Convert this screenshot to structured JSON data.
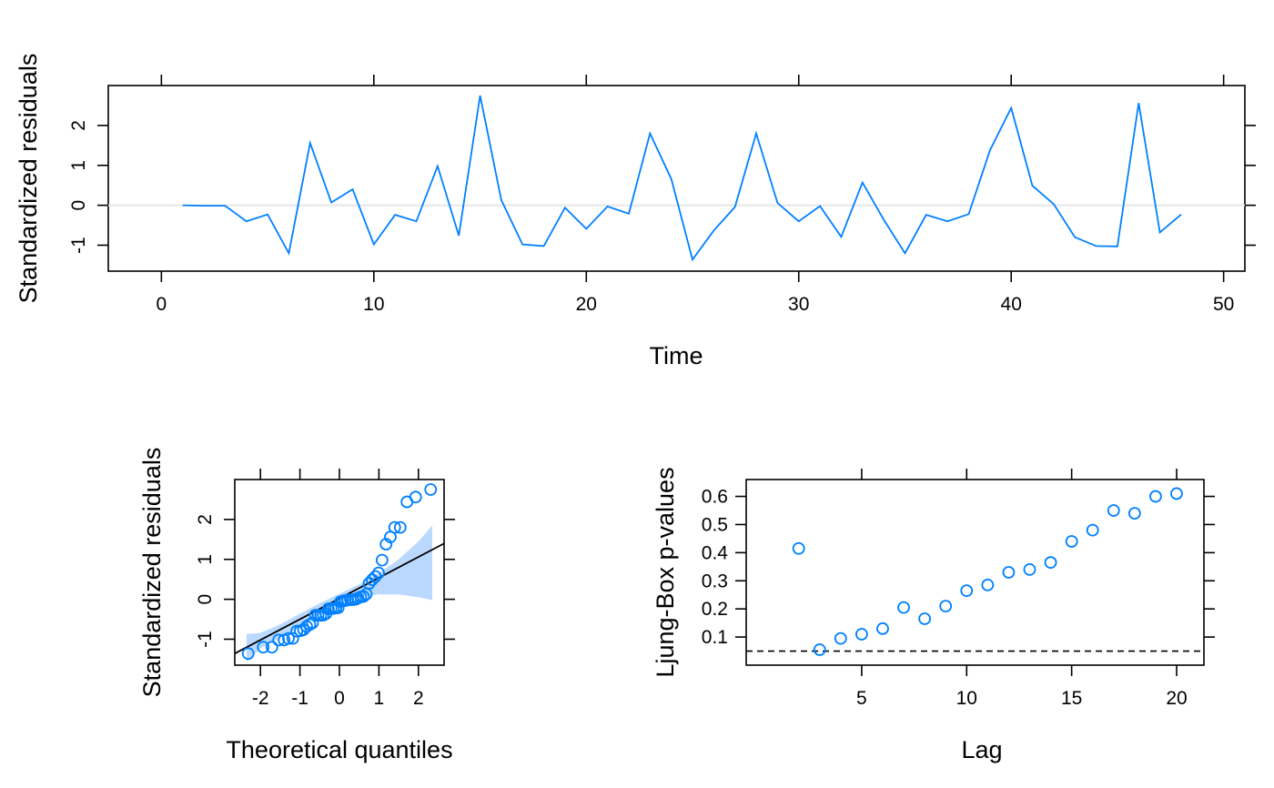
{
  "chart_data": [
    {
      "type": "line",
      "xlabel": "Time",
      "ylabel": "Standardized residuals",
      "xlim": [
        -2.5,
        51
      ],
      "ylim": [
        -1.65,
        3.0
      ],
      "x_ticks": [
        "0",
        "10",
        "20",
        "30",
        "40",
        "50"
      ],
      "y_ticks": [
        "-1",
        "0",
        "1",
        "2"
      ],
      "reference_line": 0,
      "grid": false,
      "color": "#0080FF",
      "reference_color": "#E6E6E6",
      "series": [
        {
          "x": [
            1,
            2,
            3,
            4,
            5,
            6,
            7,
            8,
            9,
            10,
            11,
            12,
            13,
            14,
            15,
            16,
            17,
            18,
            19,
            20,
            21,
            22,
            23,
            24,
            25,
            26,
            27,
            28,
            29,
            30,
            31,
            32,
            33,
            34,
            35,
            36,
            37,
            38,
            39,
            40,
            41,
            42,
            43,
            44,
            45,
            46,
            47,
            48
          ],
          "values": [
            0.0,
            -0.01,
            -0.01,
            -0.4,
            -0.23,
            -1.2,
            1.56,
            0.07,
            0.4,
            -0.98,
            -0.24,
            -0.4,
            0.98,
            -0.76,
            2.75,
            0.13,
            -0.98,
            -1.02,
            -0.06,
            -0.59,
            -0.03,
            -0.21,
            1.8,
            0.66,
            -1.36,
            -0.63,
            -0.04,
            1.8,
            0.06,
            -0.4,
            -0.02,
            -0.79,
            0.57,
            -0.36,
            -1.2,
            -0.24,
            -0.4,
            -0.22,
            1.38,
            2.44,
            0.49,
            0.03,
            -0.8,
            -1.02,
            -1.03,
            2.56,
            -0.68,
            -0.23
          ]
        }
      ]
    },
    {
      "type": "scatter",
      "xlabel": "Theoretical quantiles",
      "ylabel": "Standardized residuals",
      "xlim": [
        -2.65,
        2.65
      ],
      "ylim": [
        -1.65,
        3.0
      ],
      "x_ticks": [
        "-2",
        "-1",
        "0",
        "1",
        "2"
      ],
      "y_ticks": [
        "-1",
        "0",
        "1",
        "2"
      ],
      "grid": false,
      "point_color": "#0080FF",
      "band_color": "#BBD9FF",
      "line_color": "#000000",
      "reference_line": {
        "intercept": 0.02,
        "slope": 0.52
      },
      "confidence_band": {
        "x": [
          -2.35,
          -2.0,
          -1.5,
          -1.0,
          -0.5,
          0.0,
          0.5,
          1.0,
          1.5,
          2.0,
          2.35
        ],
        "lower": [
          -1.57,
          -1.23,
          -0.97,
          -0.7,
          -0.37,
          -0.1,
          0.06,
          0.12,
          0.12,
          0.05,
          -0.02
        ],
        "upper": [
          -0.87,
          -0.84,
          -0.63,
          -0.36,
          -0.1,
          0.14,
          0.37,
          0.66,
          1.0,
          1.45,
          1.85
        ]
      },
      "series": [
        {
          "x": [
            -2.31,
            -1.93,
            -1.71,
            -1.54,
            -1.4,
            -1.29,
            -1.18,
            -1.08,
            -0.99,
            -0.91,
            -0.83,
            -0.75,
            -0.68,
            -0.61,
            -0.54,
            -0.47,
            -0.41,
            -0.34,
            -0.28,
            -0.21,
            -0.15,
            -0.09,
            -0.03,
            0.03,
            0.09,
            0.15,
            0.21,
            0.28,
            0.34,
            0.41,
            0.47,
            0.54,
            0.61,
            0.68,
            0.75,
            0.83,
            0.91,
            0.99,
            1.08,
            1.18,
            1.29,
            1.4,
            1.54,
            1.71,
            1.93,
            2.31
          ],
          "values": [
            -1.36,
            -1.2,
            -1.2,
            -1.02,
            -1.02,
            -0.98,
            -0.98,
            -0.8,
            -0.79,
            -0.76,
            -0.68,
            -0.63,
            -0.59,
            -0.4,
            -0.4,
            -0.4,
            -0.4,
            -0.36,
            -0.24,
            -0.23,
            -0.23,
            -0.22,
            -0.21,
            -0.06,
            -0.04,
            -0.03,
            -0.02,
            -0.01,
            -0.01,
            0.0,
            0.03,
            0.06,
            0.07,
            0.13,
            0.4,
            0.49,
            0.57,
            0.66,
            0.98,
            1.38,
            1.56,
            1.8,
            1.8,
            2.44,
            2.56,
            2.75
          ]
        }
      ]
    },
    {
      "type": "scatter",
      "xlabel": "Lag",
      "ylabel": "Ljung-Box p-values",
      "xlim": [
        -0.5,
        21.3
      ],
      "ylim": [
        0.0,
        0.66
      ],
      "x_ticks": [
        "5",
        "10",
        "15",
        "20"
      ],
      "y_ticks": [
        "0.1",
        "0.2",
        "0.3",
        "0.4",
        "0.5",
        "0.6"
      ],
      "reference_line": 0.05,
      "reference_style": "dashed",
      "grid": false,
      "point_color": "#0080FF",
      "series": [
        {
          "x": [
            2,
            3,
            4,
            5,
            6,
            7,
            8,
            9,
            10,
            11,
            12,
            13,
            14,
            15,
            16,
            17,
            18,
            19,
            20
          ],
          "values": [
            0.415,
            0.055,
            0.095,
            0.11,
            0.13,
            0.205,
            0.165,
            0.21,
            0.265,
            0.285,
            0.33,
            0.34,
            0.365,
            0.44,
            0.48,
            0.55,
            0.54,
            0.6,
            0.61
          ]
        }
      ]
    }
  ]
}
